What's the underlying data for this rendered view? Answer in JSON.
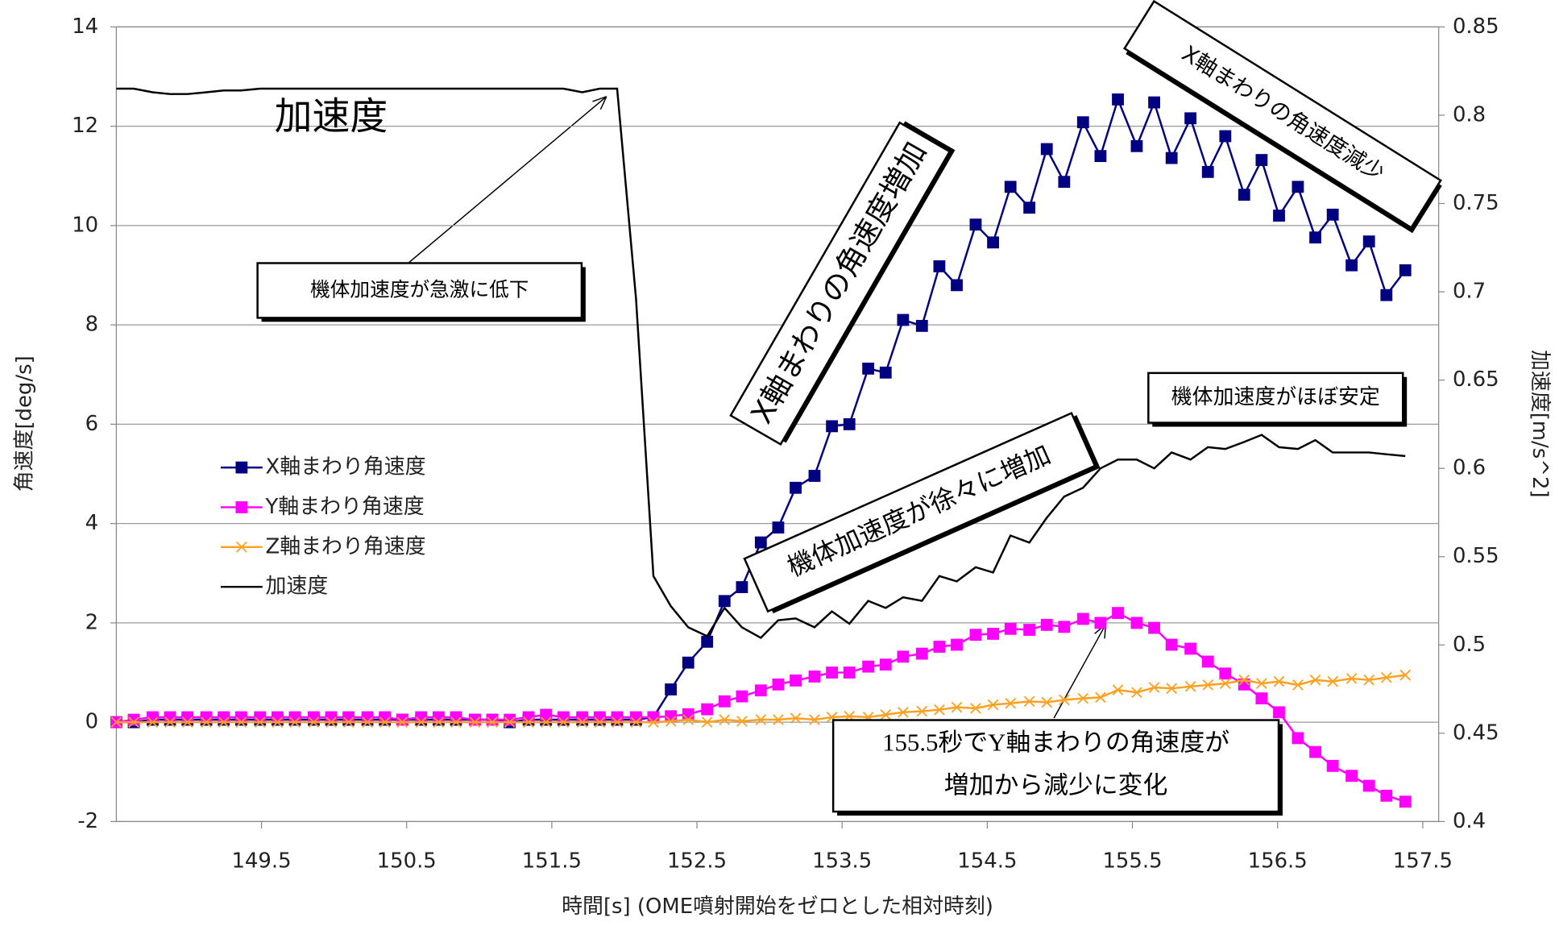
{
  "chart_data": {
    "type": "line",
    "x_label": "時間[s] (OME噴射開始をゼロとした相対時刻)",
    "y_label": "角速度[deg/s]",
    "y2_label": "加速度[m/s^2]",
    "xlim": [
      148.5,
      157.61
    ],
    "xticks": [
      149.5,
      150.5,
      151.5,
      152.5,
      153.5,
      154.5,
      155.5,
      156.5,
      157.5
    ],
    "ylim": [
      -2,
      14
    ],
    "yticks": [
      -2,
      0,
      2,
      4,
      6,
      8,
      10,
      12,
      14
    ],
    "y2lim": [
      0.4,
      0.85
    ],
    "y2ticks": [
      0.4,
      0.45,
      0.5,
      0.55,
      0.6,
      0.65,
      0.7,
      0.75,
      0.8,
      0.85
    ],
    "grid": true,
    "legend": "left",
    "x": [
      148.5,
      148.62,
      148.75,
      148.87,
      148.99,
      149.12,
      149.24,
      149.36,
      149.49,
      149.61,
      149.73,
      149.86,
      149.98,
      150.1,
      150.23,
      150.35,
      150.47,
      150.6,
      150.72,
      150.84,
      150.97,
      151.09,
      151.21,
      151.34,
      151.46,
      151.58,
      151.71,
      151.83,
      151.95,
      152.08,
      152.2,
      152.32,
      152.44,
      152.57,
      152.69,
      152.81,
      152.94,
      153.06,
      153.18,
      153.31,
      153.43,
      153.55,
      153.68,
      153.8,
      153.92,
      154.05,
      154.17,
      154.29,
      154.42,
      154.54,
      154.66,
      154.79,
      154.91,
      155.03,
      155.16,
      155.28,
      155.4,
      155.53,
      155.65,
      155.77,
      155.9,
      156.02,
      156.14,
      156.27,
      156.39,
      156.51,
      156.64,
      156.76,
      156.88,
      157.01,
      157.13,
      157.25,
      157.38
    ],
    "series": [
      {
        "name": "X軸まわり角速度",
        "color": "#000080",
        "marker": "square",
        "values": [
          0,
          0,
          0.05,
          0.05,
          0.05,
          0.05,
          0.05,
          0.05,
          0.05,
          0.05,
          0.05,
          0.05,
          0.05,
          0.05,
          0.05,
          0.05,
          0.05,
          0.05,
          0.05,
          0.05,
          0.05,
          0.05,
          0,
          0.05,
          0.05,
          0.05,
          0.05,
          0.05,
          0.05,
          0.05,
          0.1,
          0.66,
          1.2,
          1.62,
          2.44,
          2.72,
          3.62,
          3.92,
          4.72,
          4.96,
          5.96,
          6.0,
          7.12,
          7.04,
          8.1,
          7.98,
          9.18,
          8.8,
          10.02,
          9.66,
          10.78,
          10.36,
          11.54,
          10.88,
          12.08,
          11.4,
          12.54,
          11.6,
          12.48,
          11.36,
          12.16,
          11.08,
          11.8,
          10.62,
          11.32,
          10.2,
          10.78,
          9.76,
          10.22,
          9.2,
          9.68,
          8.6,
          9.1
        ]
      },
      {
        "name": "Y軸まわり角速度",
        "color": "#ff00ff",
        "marker": "square",
        "values": [
          0,
          0.05,
          0.1,
          0.1,
          0.1,
          0.1,
          0.1,
          0.1,
          0.1,
          0.1,
          0.1,
          0.1,
          0.1,
          0.1,
          0.1,
          0.1,
          0.05,
          0.1,
          0.1,
          0.1,
          0.05,
          0.05,
          0.05,
          0.1,
          0.15,
          0.1,
          0.1,
          0.1,
          0.1,
          0.1,
          0.1,
          0.12,
          0.16,
          0.26,
          0.42,
          0.52,
          0.64,
          0.76,
          0.84,
          0.92,
          1.0,
          1.0,
          1.12,
          1.16,
          1.32,
          1.38,
          1.52,
          1.56,
          1.76,
          1.78,
          1.88,
          1.86,
          1.96,
          1.92,
          2.08,
          2.0,
          2.2,
          2.0,
          1.9,
          1.56,
          1.48,
          1.22,
          0.98,
          0.76,
          0.48,
          0.2,
          -0.32,
          -0.6,
          -0.88,
          -1.08,
          -1.28,
          -1.48,
          -1.6
        ]
      },
      {
        "name": "Z軸まわり角速度",
        "color": "#ffa020",
        "marker": "x",
        "values": [
          0,
          0,
          0,
          0,
          0,
          0,
          0,
          0,
          0,
          0,
          0,
          0,
          0,
          0,
          0,
          0,
          0,
          0,
          0,
          0,
          0,
          0,
          0,
          0,
          0,
          0,
          0,
          0,
          0,
          0,
          0,
          0.02,
          0.05,
          0.0,
          0.05,
          0.02,
          0.05,
          0.05,
          0.08,
          0.05,
          0.1,
          0.12,
          0.1,
          0.15,
          0.2,
          0.22,
          0.25,
          0.3,
          0.28,
          0.35,
          0.38,
          0.42,
          0.4,
          0.45,
          0.48,
          0.5,
          0.65,
          0.6,
          0.7,
          0.68,
          0.72,
          0.75,
          0.78,
          0.85,
          0.78,
          0.82,
          0.75,
          0.85,
          0.82,
          0.88,
          0.85,
          0.9,
          0.95
        ]
      },
      {
        "name": "加速度",
        "color": "#000000",
        "marker": "none",
        "axis": "y2",
        "values": [
          0.815,
          0.815,
          0.813,
          0.812,
          0.812,
          0.813,
          0.814,
          0.814,
          0.815,
          0.815,
          0.815,
          0.815,
          0.815,
          0.815,
          0.815,
          0.815,
          0.815,
          0.815,
          0.815,
          0.815,
          0.815,
          0.815,
          0.815,
          0.815,
          0.815,
          0.815,
          0.813,
          0.815,
          0.815,
          0.696,
          0.539,
          0.522,
          0.51,
          0.505,
          0.521,
          0.51,
          0.504,
          0.514,
          0.515,
          0.51,
          0.519,
          0.512,
          0.525,
          0.521,
          0.527,
          0.525,
          0.539,
          0.536,
          0.544,
          0.541,
          0.562,
          0.558,
          0.572,
          0.584,
          0.589,
          0.6,
          0.605,
          0.605,
          0.6,
          0.609,
          0.605,
          0.612,
          0.611,
          0.615,
          0.619,
          0.612,
          0.611,
          0.616,
          0.609,
          0.609,
          0.609,
          0.608,
          0.607
        ]
      }
    ],
    "annotations": [
      "加速度",
      "機体加速度が急激に低下",
      "X軸まわりの角速度増加",
      "X軸まわりの角速度減少",
      "機体加速度が徐々に増加",
      "機体加速度がほぼ安定",
      "155.5秒でY軸まわりの角速度が",
      "増加から減少に変化"
    ]
  }
}
